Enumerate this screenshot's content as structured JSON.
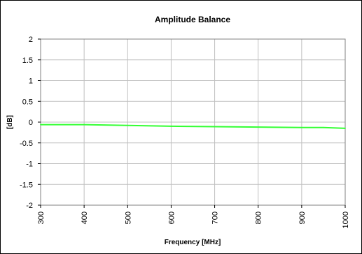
{
  "chart_data": {
    "type": "line",
    "title": "Amplitude Balance",
    "xlabel": "Frequency [MHz]",
    "ylabel": "[dB]",
    "xlim": [
      300,
      1000
    ],
    "ylim": [
      -2,
      2
    ],
    "x_ticks": [
      300,
      400,
      500,
      600,
      700,
      800,
      900,
      1000
    ],
    "y_ticks": [
      2,
      1.5,
      1,
      0.5,
      0,
      -0.5,
      -1,
      -1.5,
      -2
    ],
    "x_tick_labels": [
      "300",
      "400",
      "500",
      "600",
      "700",
      "800",
      "900",
      "1000"
    ],
    "y_tick_labels": [
      "2",
      "1.5",
      "1",
      "0.5",
      "0",
      "-0.5",
      "-1",
      "-1.5",
      "-2"
    ],
    "grid": true,
    "legend": "none",
    "series": [
      {
        "color": "#33ff33",
        "x": [
          300,
          400,
          500,
          600,
          700,
          800,
          900,
          950,
          1000
        ],
        "y": [
          -0.06,
          -0.06,
          -0.08,
          -0.1,
          -0.11,
          -0.12,
          -0.13,
          -0.13,
          -0.15
        ]
      }
    ]
  }
}
